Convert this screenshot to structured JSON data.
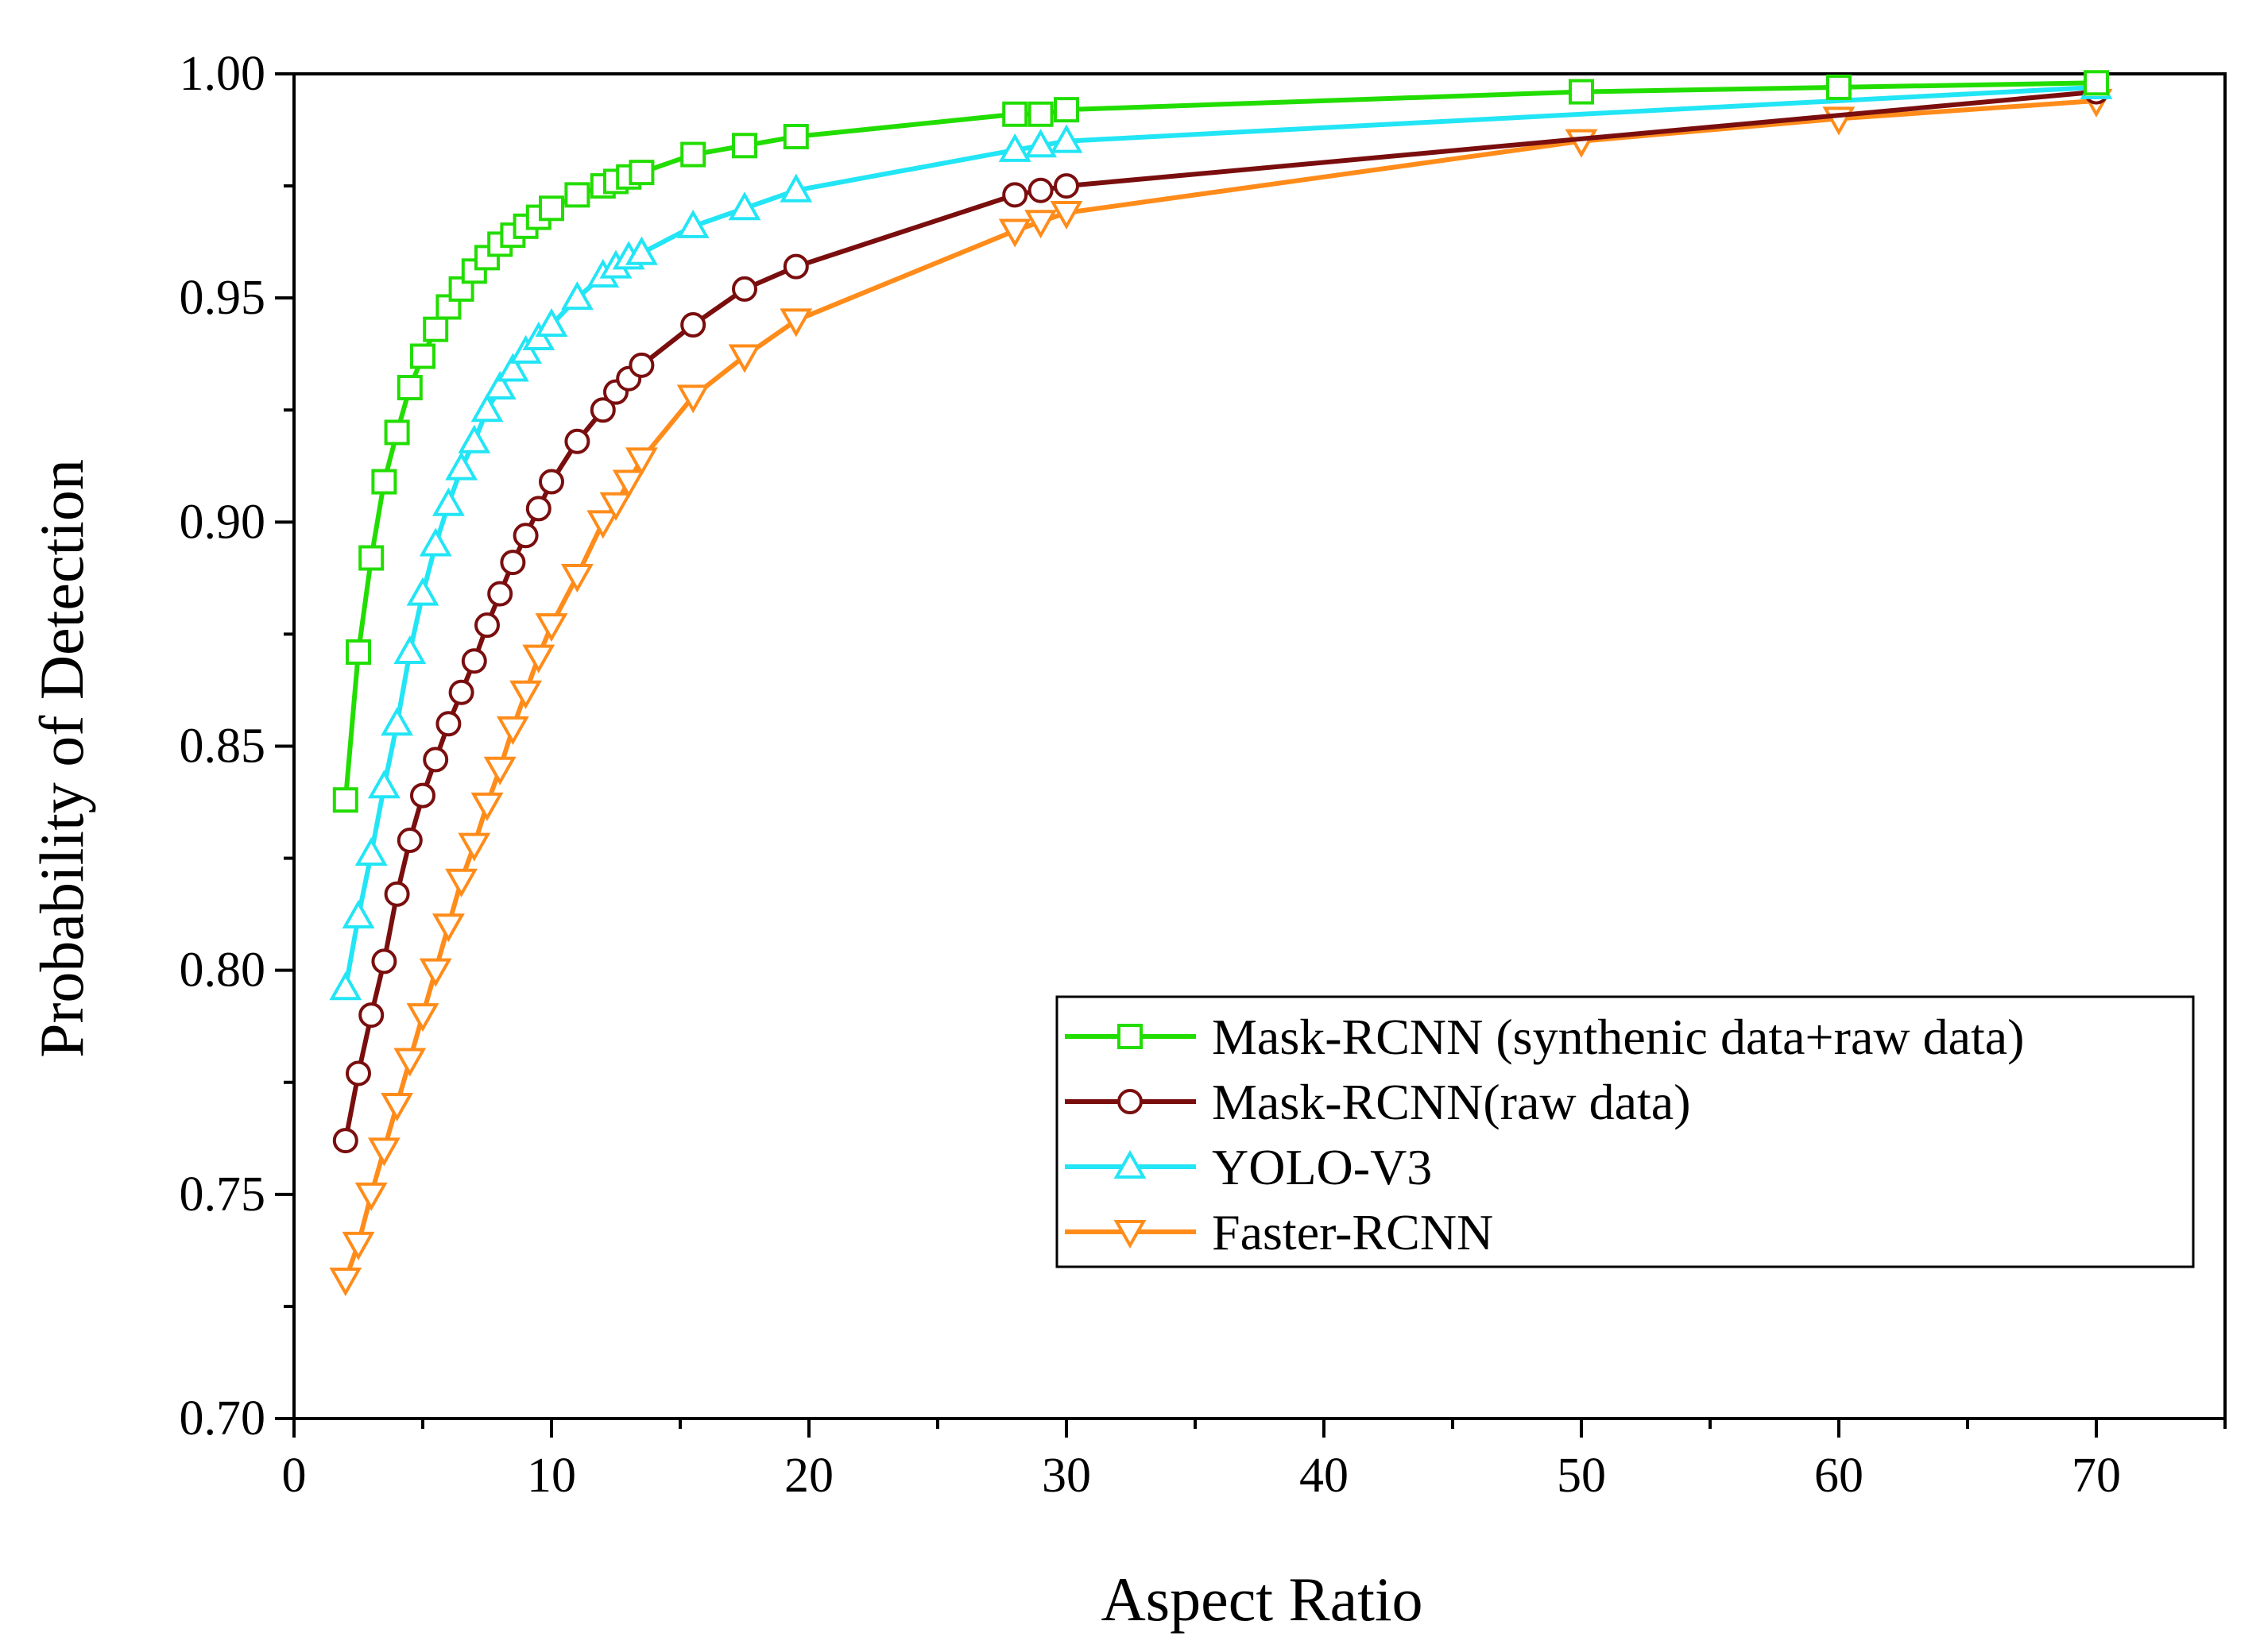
{
  "chart_data": {
    "type": "line",
    "title": "",
    "xlabel": "Aspect Ratio",
    "ylabel": "Probability of  Detection",
    "xlim": [
      0,
      75
    ],
    "ylim": [
      0.7,
      1.0
    ],
    "x_ticks": [
      0,
      10,
      20,
      30,
      40,
      50,
      60,
      70
    ],
    "x_tick_labels": [
      "0",
      "10",
      "20",
      "30",
      "40",
      "50",
      "60",
      "70"
    ],
    "y_ticks": [
      0.7,
      0.75,
      0.8,
      0.85,
      0.9,
      0.95,
      1.0
    ],
    "y_tick_labels": [
      "0.70",
      "0.75",
      "0.80",
      "0.85",
      "0.90",
      "0.95",
      "1.00"
    ],
    "grid": false,
    "legend_position": "center-right",
    "series": [
      {
        "name": "Mask-RCNN (synthenic data+raw data)",
        "color": "#22dd00",
        "marker": "square",
        "x": [
          2,
          2.5,
          3,
          3.5,
          4,
          4.5,
          5,
          5.5,
          6,
          6.5,
          7,
          7.5,
          8,
          8.5,
          9,
          9.5,
          10,
          11,
          12,
          12.5,
          13,
          13.5,
          15.5,
          17.5,
          19.5,
          28,
          29,
          30,
          50,
          60,
          70
        ],
        "values": [
          0.838,
          0.871,
          0.892,
          0.909,
          0.92,
          0.93,
          0.937,
          0.943,
          0.948,
          0.952,
          0.956,
          0.959,
          0.962,
          0.964,
          0.966,
          0.968,
          0.97,
          0.973,
          0.975,
          0.976,
          0.977,
          0.978,
          0.982,
          0.984,
          0.986,
          0.991,
          0.991,
          0.992,
          0.996,
          0.997,
          0.998
        ]
      },
      {
        "name": "Mask-RCNN(raw data)",
        "color": "#7a0e0e",
        "marker": "circle",
        "x": [
          2,
          2.5,
          3,
          3.5,
          4,
          4.5,
          5,
          5.5,
          6,
          6.5,
          7,
          7.5,
          8,
          8.5,
          9,
          9.5,
          10,
          11,
          12,
          12.5,
          13,
          13.5,
          15.5,
          17.5,
          19.5,
          28,
          29,
          30,
          70
        ],
        "values": [
          0.762,
          0.777,
          0.79,
          0.802,
          0.817,
          0.829,
          0.839,
          0.847,
          0.855,
          0.862,
          0.869,
          0.877,
          0.884,
          0.891,
          0.897,
          0.903,
          0.909,
          0.918,
          0.925,
          0.929,
          0.932,
          0.935,
          0.944,
          0.952,
          0.957,
          0.973,
          0.974,
          0.975,
          0.996
        ]
      },
      {
        "name": "YOLO-V3",
        "color": "#22e5f5",
        "marker": "triangle-up",
        "x": [
          2,
          2.5,
          3,
          3.5,
          4,
          4.5,
          5,
          5.5,
          6,
          6.5,
          7,
          7.5,
          8,
          8.5,
          9,
          9.5,
          10,
          11,
          12,
          12.5,
          13,
          13.5,
          15.5,
          17.5,
          19.5,
          28,
          29,
          30,
          70
        ],
        "values": [
          0.796,
          0.812,
          0.826,
          0.841,
          0.855,
          0.871,
          0.884,
          0.895,
          0.904,
          0.912,
          0.918,
          0.925,
          0.93,
          0.934,
          0.938,
          0.941,
          0.944,
          0.95,
          0.955,
          0.957,
          0.959,
          0.96,
          0.966,
          0.97,
          0.974,
          0.983,
          0.984,
          0.985,
          0.997
        ]
      },
      {
        "name": "Faster-RCNN",
        "color": "#ff8c1a",
        "marker": "triangle-down",
        "x": [
          2,
          2.5,
          3,
          3.5,
          4,
          4.5,
          5,
          5.5,
          6,
          6.5,
          7,
          7.5,
          8,
          8.5,
          9,
          9.5,
          10,
          11,
          12,
          12.5,
          13,
          13.5,
          15.5,
          17.5,
          19.5,
          28,
          29,
          30,
          50,
          60,
          70
        ],
        "values": [
          0.731,
          0.739,
          0.75,
          0.76,
          0.77,
          0.78,
          0.79,
          0.8,
          0.81,
          0.82,
          0.828,
          0.837,
          0.845,
          0.854,
          0.862,
          0.87,
          0.877,
          0.888,
          0.9,
          0.904,
          0.909,
          0.914,
          0.928,
          0.937,
          0.945,
          0.965,
          0.967,
          0.969,
          0.985,
          0.99,
          0.994
        ]
      }
    ]
  }
}
